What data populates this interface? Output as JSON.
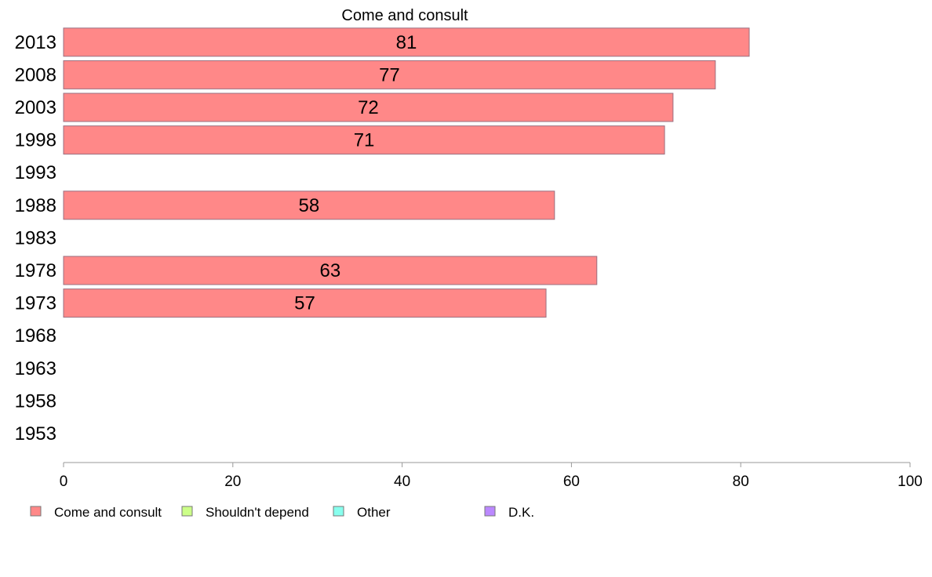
{
  "chart_data": {
    "type": "bar",
    "orientation": "horizontal",
    "title": "Come and consult",
    "xlabel": "",
    "ylabel": "",
    "xlim": [
      0,
      100
    ],
    "x_ticks": [
      0,
      20,
      40,
      60,
      80,
      100
    ],
    "grid": false,
    "legend_position": "bottom-left",
    "categories": [
      "2013",
      "2008",
      "2003",
      "1998",
      "1993",
      "1988",
      "1983",
      "1978",
      "1973",
      "1968",
      "1963",
      "1958",
      "1953"
    ],
    "series": [
      {
        "name": "Come and consult",
        "color": "#ff8888",
        "values": [
          81,
          77,
          72,
          71,
          null,
          58,
          null,
          63,
          57,
          null,
          null,
          null,
          null
        ]
      }
    ],
    "legend": [
      {
        "name": "Come and consult",
        "color": "#ff8888"
      },
      {
        "name": "Shouldn't depend",
        "color": "#ccff88"
      },
      {
        "name": "Other",
        "color": "#88ffee"
      },
      {
        "name": "D.K.",
        "color": "#bb88ff"
      }
    ]
  }
}
